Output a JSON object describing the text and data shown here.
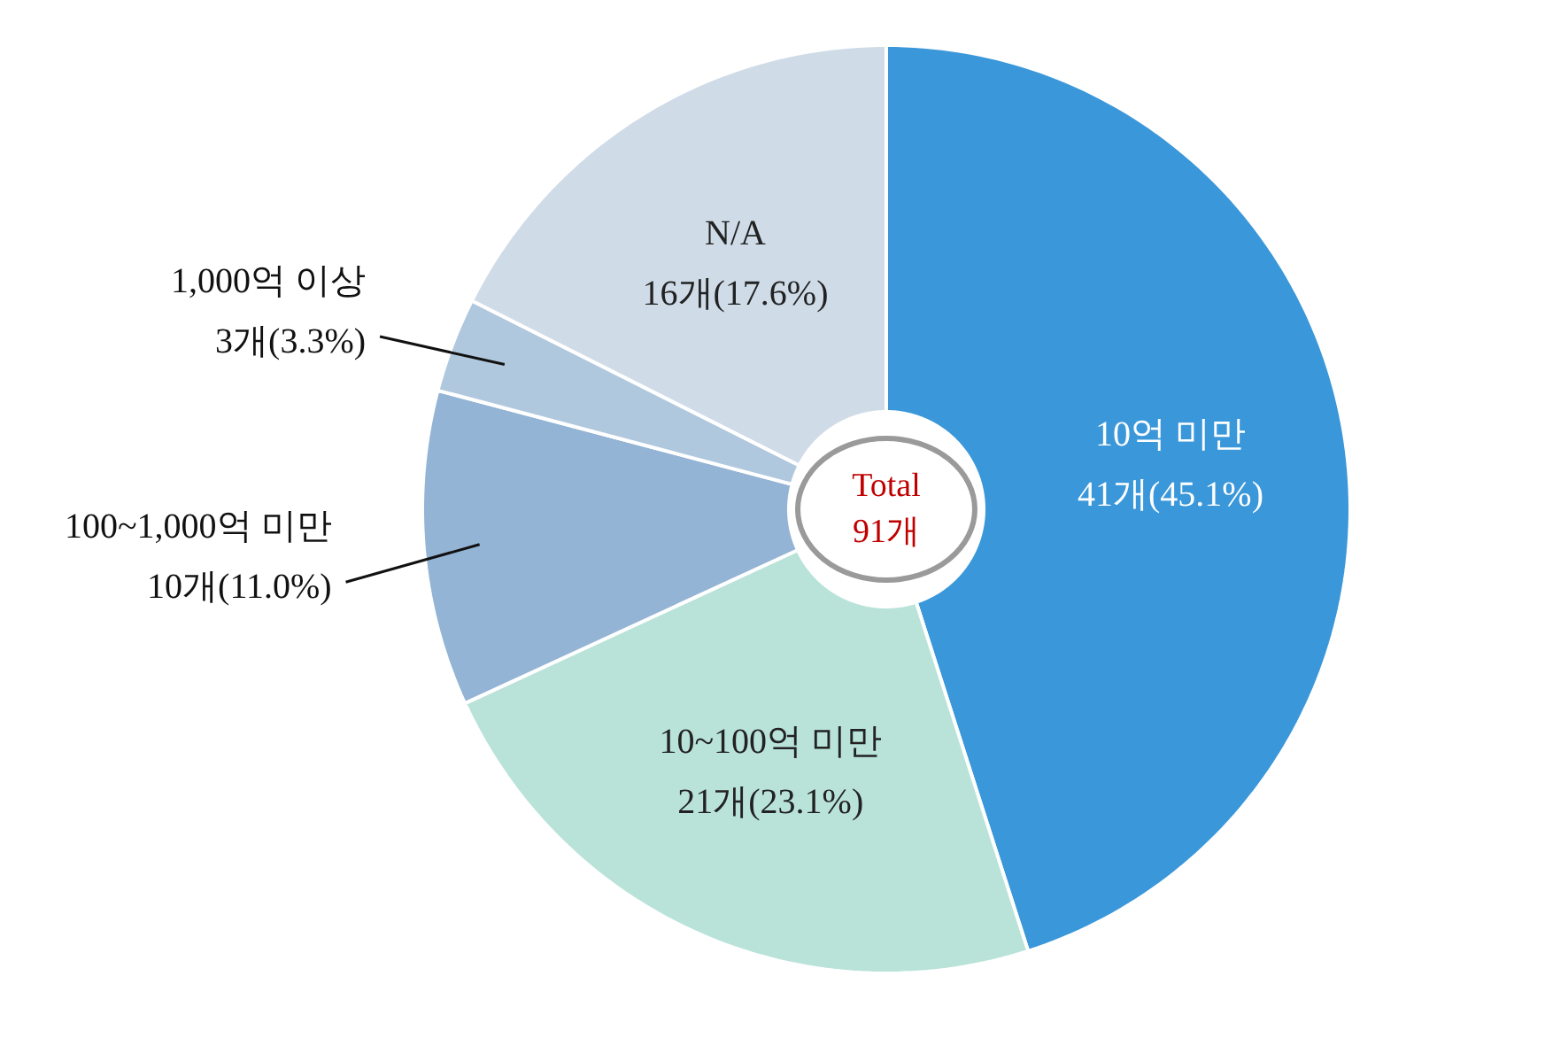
{
  "chart_data": {
    "type": "donut",
    "categories": [
      "10억 미만",
      "10~100억 미만",
      "100~1,000억 미만",
      "1,000억 이상",
      "N/A"
    ],
    "values": [
      41,
      21,
      10,
      3,
      16
    ],
    "value_labels": [
      "41개(45.1%)",
      "21개(23.1%)",
      "10개(11.0%)",
      "3개(3.3%)",
      "16개(17.6%)"
    ],
    "colors": [
      "#3a97d9",
      "#b9e3d9",
      "#93b4d4",
      "#b0c8de",
      "#cfdce8"
    ],
    "annotations": [
      "Total 91개"
    ]
  }
}
